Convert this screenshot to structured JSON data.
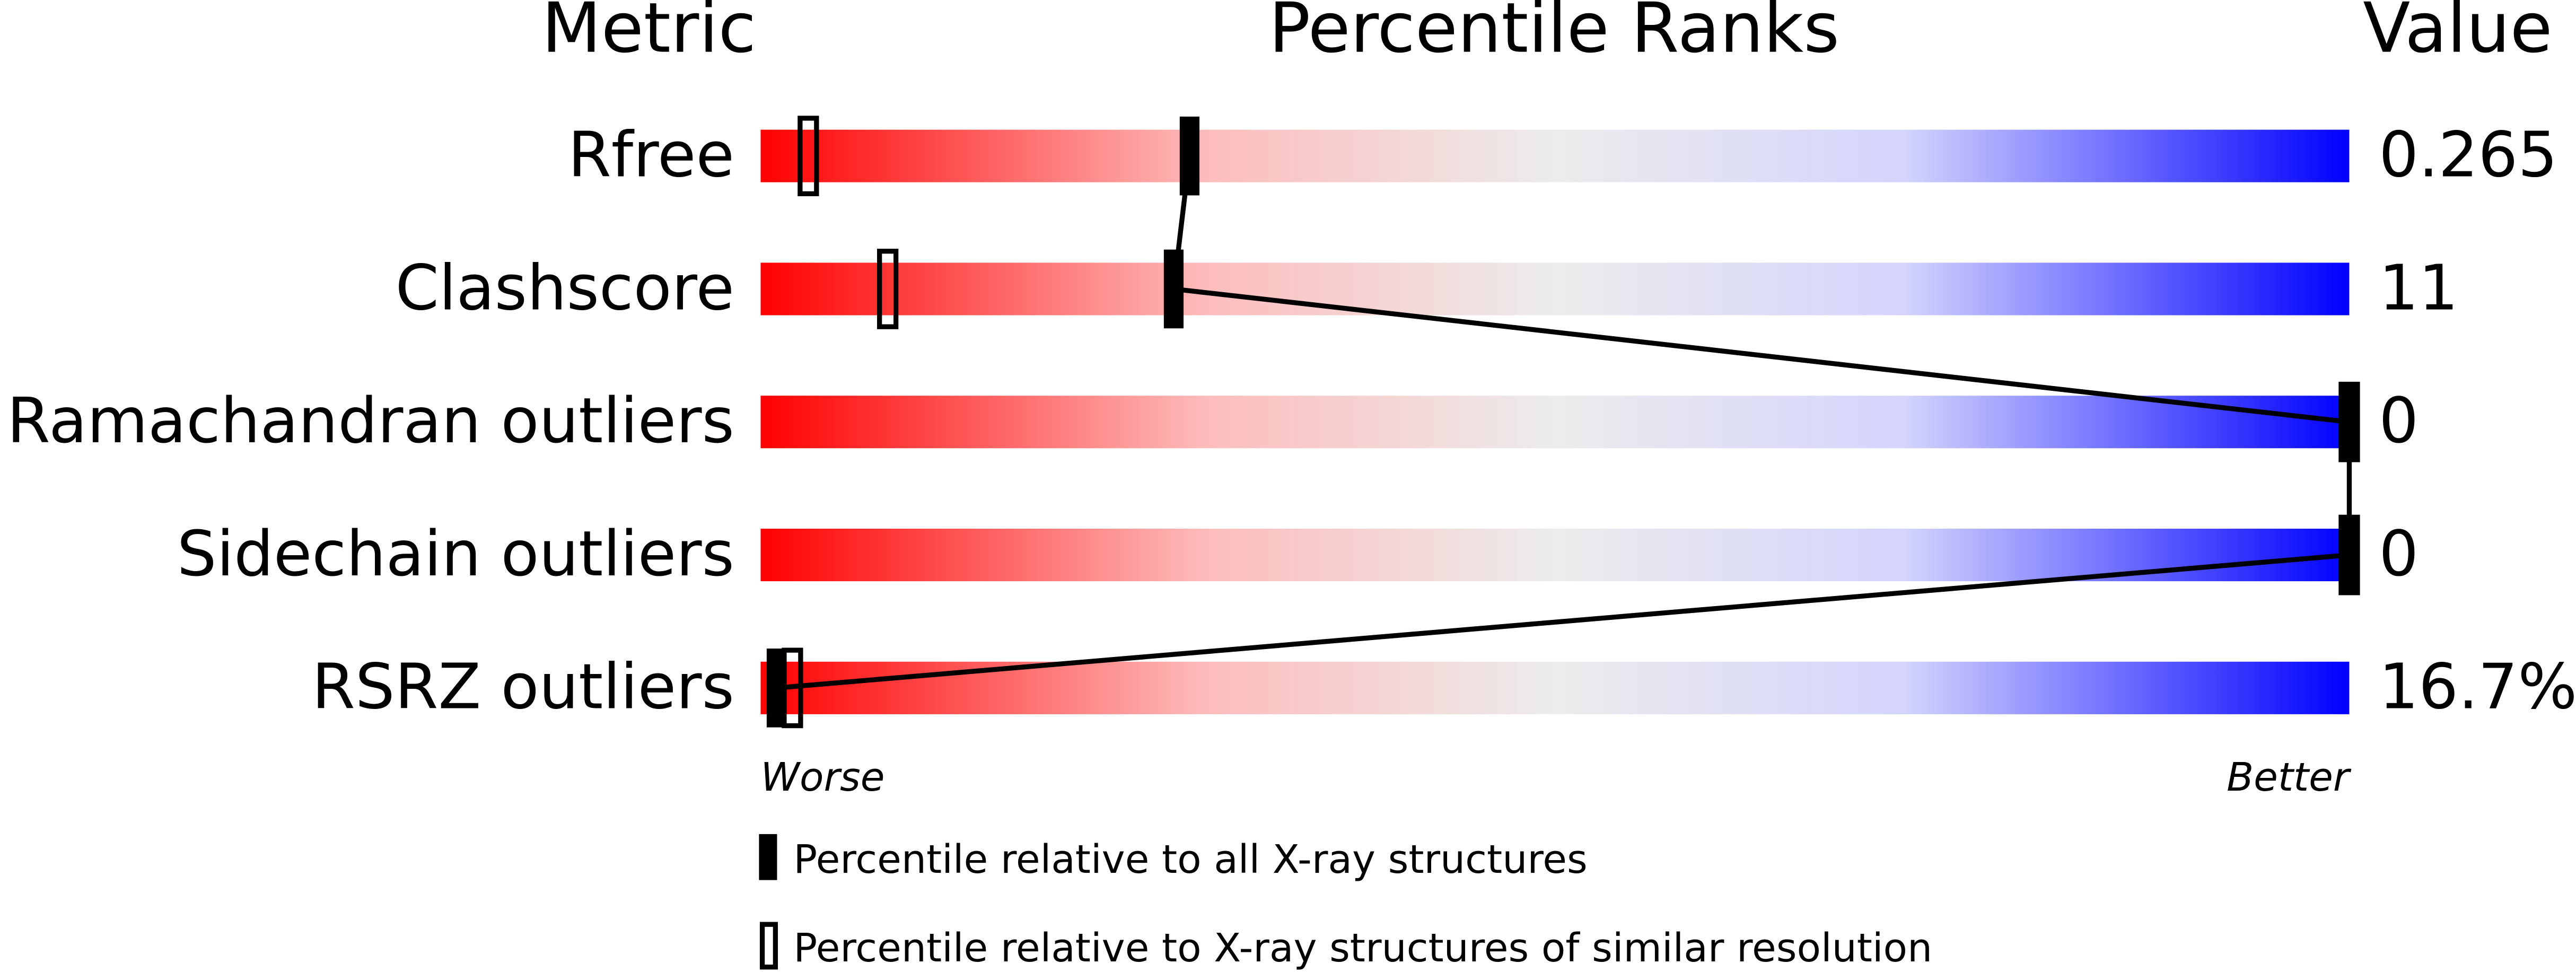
{
  "chart_data": {
    "type": "percentile",
    "header": [
      "Metric",
      "Percentile Ranks",
      "Value"
    ],
    "categories": [
      "Rfree",
      "Clashscore",
      "Ramachandran outliers",
      "Sidechain outliers",
      "RSRZ outliers"
    ],
    "value_labels": [
      "0.265",
      "11",
      "0",
      "0",
      "16.7%"
    ],
    "xlim": [
      0,
      100
    ],
    "x_end_labels": [
      "Worse",
      "Better"
    ],
    "series": [
      {
        "name": "Percentile relative to all X-ray structures",
        "color": "#000000",
        "marker": "filled",
        "values": [
          27,
          26,
          100,
          100,
          1
        ]
      },
      {
        "name": "Percentile relative to X-ray structures of similar resolution",
        "color": "#000000",
        "marker": "open",
        "values": [
          3,
          8,
          100,
          100,
          2
        ]
      }
    ]
  }
}
